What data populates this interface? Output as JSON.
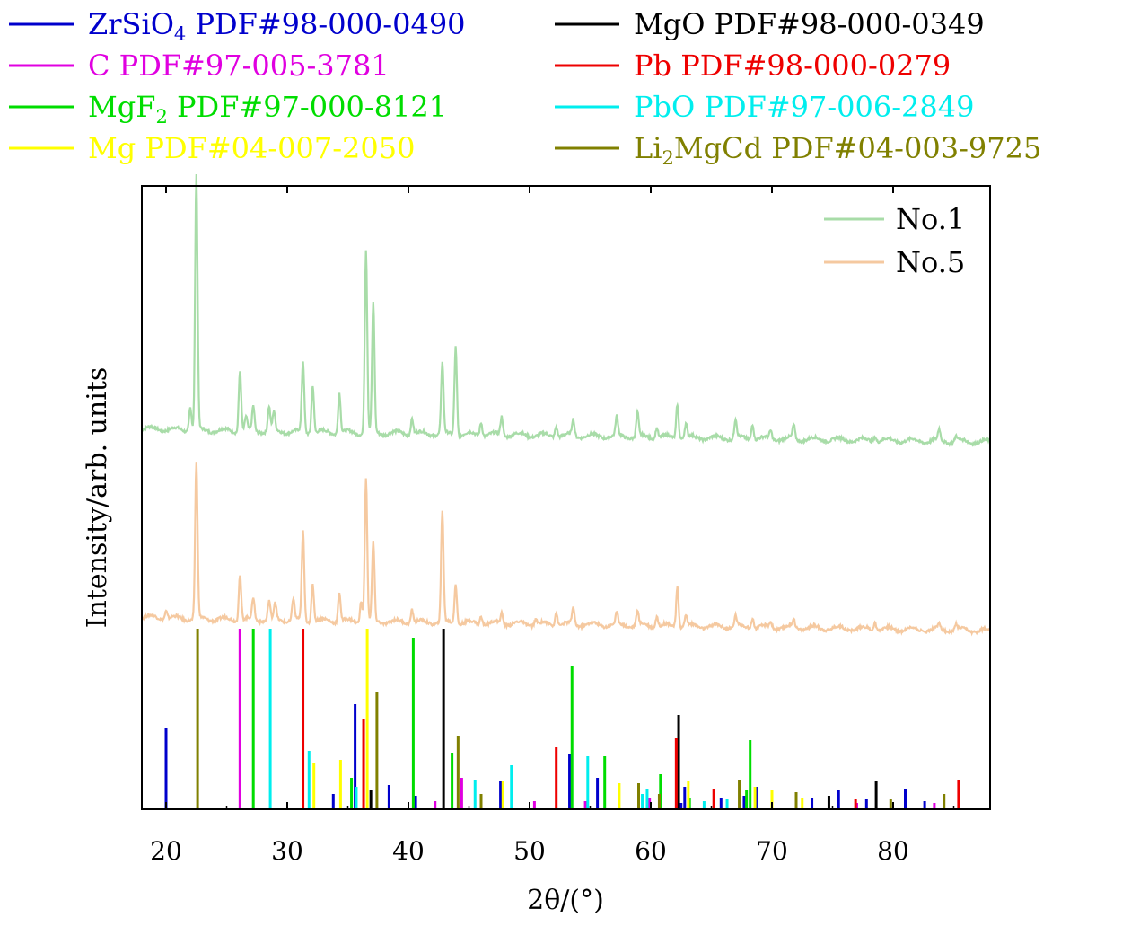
{
  "colors": {
    "ZrSiO4": "#0000cc",
    "C": "#e000e0",
    "MgF2": "#00dd00",
    "Mg": "#ffff00",
    "MgO": "#000000",
    "Pb": "#ee0000",
    "PbO": "#00eeee",
    "Li2MgCd": "#808000",
    "No1": "#a8dca8",
    "No5": "#f5c9a0"
  },
  "chart_data": {
    "type": "line",
    "xlabel": "2θ/(°)",
    "ylabel": "Intensity/arb. units",
    "xlim": [
      18,
      88
    ],
    "xticks": [
      20,
      30,
      40,
      50,
      60,
      70,
      80
    ],
    "grid": false,
    "legend_placement": "top-right",
    "series": [
      {
        "name": "No.1",
        "color_key": "No1",
        "baseline": 0.66,
        "peaks": [
          [
            22.0,
            0.09
          ],
          [
            22.5,
            0.95
          ],
          [
            26.1,
            0.23
          ],
          [
            26.6,
            0.05
          ],
          [
            27.2,
            0.09
          ],
          [
            28.5,
            0.09
          ],
          [
            28.9,
            0.07
          ],
          [
            31.3,
            0.26
          ],
          [
            32.1,
            0.18
          ],
          [
            34.3,
            0.15
          ],
          [
            36.5,
            0.68
          ],
          [
            37.1,
            0.48
          ],
          [
            40.3,
            0.06
          ],
          [
            42.8,
            0.26
          ],
          [
            43.9,
            0.33
          ],
          [
            46.0,
            0.05
          ],
          [
            47.7,
            0.07
          ],
          [
            52.2,
            0.04
          ],
          [
            53.6,
            0.06
          ],
          [
            57.2,
            0.07
          ],
          [
            58.9,
            0.09
          ],
          [
            60.5,
            0.04
          ],
          [
            62.2,
            0.13
          ],
          [
            62.9,
            0.05
          ],
          [
            67.0,
            0.07
          ],
          [
            68.4,
            0.06
          ],
          [
            69.9,
            0.03
          ],
          [
            71.8,
            0.05
          ],
          [
            78.5,
            0.02
          ],
          [
            83.8,
            0.04
          ],
          [
            85.2,
            0.02
          ]
        ]
      },
      {
        "name": "No.5",
        "color_key": "No5",
        "baseline": 0.67,
        "peaks": [
          [
            20.0,
            0.03
          ],
          [
            22.5,
            0.58
          ],
          [
            26.1,
            0.17
          ],
          [
            27.2,
            0.08
          ],
          [
            28.5,
            0.07
          ],
          [
            29.0,
            0.06
          ],
          [
            30.5,
            0.08
          ],
          [
            31.3,
            0.33
          ],
          [
            32.1,
            0.14
          ],
          [
            34.3,
            0.11
          ],
          [
            36.1,
            0.08
          ],
          [
            36.5,
            0.53
          ],
          [
            37.1,
            0.29
          ],
          [
            40.3,
            0.05
          ],
          [
            42.8,
            0.41
          ],
          [
            43.9,
            0.15
          ],
          [
            46.0,
            0.03
          ],
          [
            47.7,
            0.04
          ],
          [
            50.5,
            0.02
          ],
          [
            52.2,
            0.05
          ],
          [
            53.6,
            0.06
          ],
          [
            57.2,
            0.04
          ],
          [
            58.9,
            0.05
          ],
          [
            60.5,
            0.04
          ],
          [
            62.2,
            0.15
          ],
          [
            62.9,
            0.04
          ],
          [
            67.0,
            0.04
          ],
          [
            68.4,
            0.04
          ],
          [
            69.9,
            0.02
          ],
          [
            71.8,
            0.03
          ],
          [
            78.5,
            0.03
          ],
          [
            83.8,
            0.02
          ],
          [
            85.2,
            0.02
          ]
        ]
      }
    ],
    "legend_series": [
      {
        "name": "No.1",
        "color_key": "No1"
      },
      {
        "name": "No.5",
        "color_key": "No5"
      }
    ],
    "reference_patterns": [
      {
        "key": "ZrSiO4",
        "label_main": "ZrSiO",
        "label_sub": "4",
        "label_rest": " PDF#98-000-0490",
        "sticks": [
          [
            20.0,
            0.45
          ],
          [
            33.8,
            0.08
          ],
          [
            35.6,
            0.58
          ],
          [
            38.4,
            0.13
          ],
          [
            40.6,
            0.07
          ],
          [
            47.6,
            0.15
          ],
          [
            53.3,
            0.3
          ],
          [
            55.6,
            0.17
          ],
          [
            59.8,
            0.04
          ],
          [
            62.5,
            0.03
          ],
          [
            62.8,
            0.12
          ],
          [
            65.8,
            0.06
          ],
          [
            67.7,
            0.07
          ],
          [
            68.7,
            0.12
          ],
          [
            73.3,
            0.06
          ],
          [
            75.5,
            0.1
          ],
          [
            77.8,
            0.05
          ],
          [
            81.0,
            0.11
          ],
          [
            82.6,
            0.04
          ]
        ]
      },
      {
        "key": "MgO",
        "label_main": "MgO PDF#98-000-0349",
        "label_sub": "",
        "label_rest": "",
        "sticks": [
          [
            36.9,
            0.1
          ],
          [
            42.9,
            1.0
          ],
          [
            62.3,
            0.52
          ],
          [
            74.7,
            0.07
          ],
          [
            78.6,
            0.15
          ]
        ]
      },
      {
        "key": "C",
        "label_main": "C PDF#97-005-3781",
        "label_sub": "",
        "label_rest": "",
        "sticks": [
          [
            26.1,
            1.0
          ],
          [
            42.2,
            0.04
          ],
          [
            44.4,
            0.17
          ],
          [
            50.4,
            0.04
          ],
          [
            54.6,
            0.04
          ],
          [
            59.9,
            0.06
          ],
          [
            77.0,
            0.03
          ],
          [
            83.4,
            0.03
          ]
        ]
      },
      {
        "key": "Pb",
        "label_main": "Pb PDF#98-000-0279",
        "label_sub": "",
        "label_rest": "",
        "sticks": [
          [
            31.3,
            1.0
          ],
          [
            36.3,
            0.5
          ],
          [
            52.2,
            0.34
          ],
          [
            62.1,
            0.39
          ],
          [
            65.2,
            0.11
          ],
          [
            76.9,
            0.05
          ],
          [
            85.4,
            0.16
          ]
        ]
      },
      {
        "key": "MgF2",
        "label_main": "MgF",
        "label_sub": "2",
        "label_rest": " PDF#97-000-8121",
        "sticks": [
          [
            27.2,
            1.0
          ],
          [
            35.3,
            0.17
          ],
          [
            40.4,
            0.95
          ],
          [
            43.6,
            0.31
          ],
          [
            53.5,
            0.79
          ],
          [
            56.2,
            0.29
          ],
          [
            60.8,
            0.19
          ],
          [
            63.2,
            0.06
          ],
          [
            67.9,
            0.1
          ],
          [
            68.2,
            0.38
          ]
        ]
      },
      {
        "key": "PbO",
        "label_main": "PbO PDF#97-006-2849",
        "label_sub": "",
        "label_rest": "",
        "sticks": [
          [
            28.6,
            1.0
          ],
          [
            31.8,
            0.32
          ],
          [
            35.7,
            0.12
          ],
          [
            45.5,
            0.16
          ],
          [
            48.5,
            0.24
          ],
          [
            54.8,
            0.29
          ],
          [
            59.3,
            0.08
          ],
          [
            59.7,
            0.11
          ],
          [
            64.4,
            0.04
          ],
          [
            66.3,
            0.05
          ]
        ]
      },
      {
        "key": "Mg",
        "label_main": "Mg PDF#04-007-2050",
        "label_sub": "",
        "label_rest": "",
        "sticks": [
          [
            32.2,
            0.25
          ],
          [
            34.4,
            0.27
          ],
          [
            36.6,
            1.0
          ],
          [
            47.8,
            0.15
          ],
          [
            57.4,
            0.14
          ],
          [
            63.1,
            0.15
          ],
          [
            68.6,
            0.12
          ],
          [
            70.0,
            0.1
          ],
          [
            72.5,
            0.06
          ]
        ]
      },
      {
        "key": "Li2MgCd",
        "label_main": "Li",
        "label_sub": "2",
        "label_rest": "MgCd PDF#04-003-9725",
        "sticks": [
          [
            22.6,
            1.0
          ],
          [
            37.4,
            0.65
          ],
          [
            44.1,
            0.4
          ],
          [
            46.0,
            0.08
          ],
          [
            59.0,
            0.14
          ],
          [
            60.7,
            0.08
          ],
          [
            67.3,
            0.16
          ],
          [
            72.0,
            0.09
          ],
          [
            79.8,
            0.05
          ],
          [
            84.2,
            0.08
          ]
        ]
      }
    ],
    "legend_top_left": [
      "ZrSiO4",
      "C",
      "MgF2",
      "Mg"
    ],
    "legend_top_right": [
      "MgO",
      "Pb",
      "PbO",
      "Li2MgCd"
    ]
  }
}
